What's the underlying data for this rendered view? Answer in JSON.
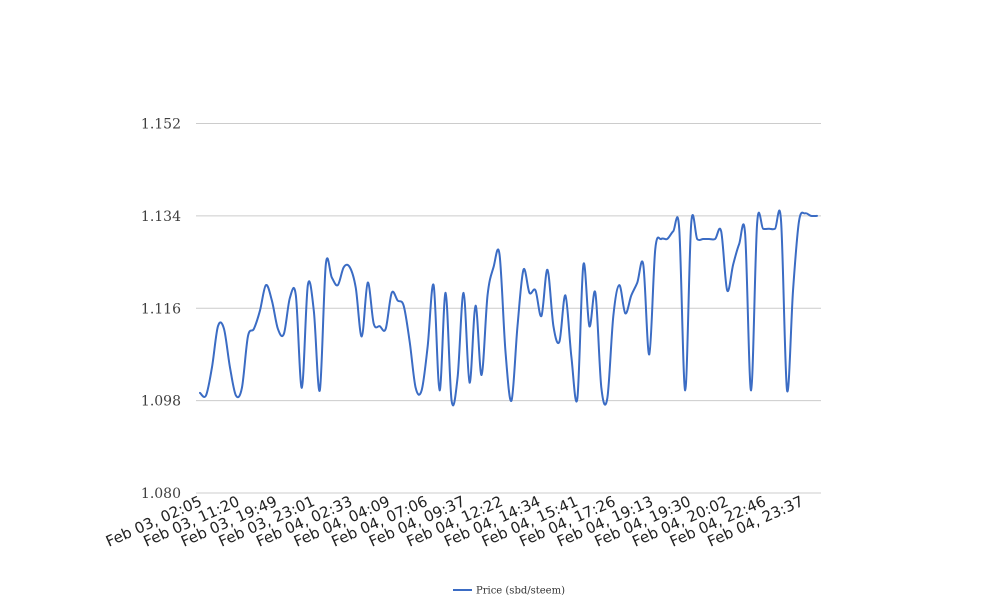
{
  "chart_data": {
    "type": "line",
    "title": "",
    "xlabel": "",
    "ylabel": "",
    "ylim": [
      1.08,
      1.152
    ],
    "yticks": [
      "1.080",
      "1.098",
      "1.116",
      "1.134",
      "1.152"
    ],
    "grid": true,
    "legend_position": "bottom-center",
    "x_tick_labels": [
      "Feb 03, 02:05",
      "Feb 03, 11:20",
      "Feb 03, 19:49",
      "Feb 03, 23:01",
      "Feb 04, 02:33",
      "Feb 04, 04:09",
      "Feb 04, 07:06",
      "Feb 04, 09:37",
      "Feb 04, 12:22",
      "Feb 04, 14:34",
      "Feb 04, 15:41",
      "Feb 04, 17:26",
      "Feb 04, 19:13",
      "Feb 04, 19:30",
      "Feb 04, 20:02",
      "Feb 04, 22:46",
      "Feb 04, 23:37"
    ],
    "series": [
      {
        "name": "Price (sbd/steem)",
        "color": "#3b6cc4",
        "values": [
          1.0995,
          1.099,
          1.1045,
          1.1125,
          1.112,
          1.1045,
          1.099,
          1.1005,
          1.1105,
          1.112,
          1.1155,
          1.1205,
          1.1175,
          1.112,
          1.111,
          1.118,
          1.1185,
          1.1005,
          1.1205,
          1.1155,
          1.1,
          1.1245,
          1.122,
          1.1205,
          1.124,
          1.124,
          1.12,
          1.1105,
          1.121,
          1.113,
          1.1125,
          1.112,
          1.119,
          1.1175,
          1.1165,
          1.1095,
          1.1005,
          1.1,
          1.1085,
          1.1205,
          1.1,
          1.119,
          1.098,
          1.1025,
          1.119,
          1.1015,
          1.1165,
          1.103,
          1.1185,
          1.124,
          1.1265,
          1.1075,
          1.098,
          1.1125,
          1.1235,
          1.119,
          1.1195,
          1.1145,
          1.1235,
          1.1125,
          1.1095,
          1.1185,
          1.1065,
          1.0985,
          1.1245,
          1.1125,
          1.119,
          1.1005,
          1.0985,
          1.1145,
          1.1205,
          1.115,
          1.1185,
          1.121,
          1.1245,
          1.107,
          1.1275,
          1.1295,
          1.1295,
          1.131,
          1.1315,
          1.1,
          1.1325,
          1.1295,
          1.1295,
          1.1295,
          1.1295,
          1.131,
          1.1195,
          1.1245,
          1.1285,
          1.1305,
          1.1,
          1.1325,
          1.1315,
          1.1315,
          1.1315,
          1.133,
          1.1,
          1.1195,
          1.133,
          1.1345,
          1.134,
          1.134
        ]
      }
    ]
  }
}
